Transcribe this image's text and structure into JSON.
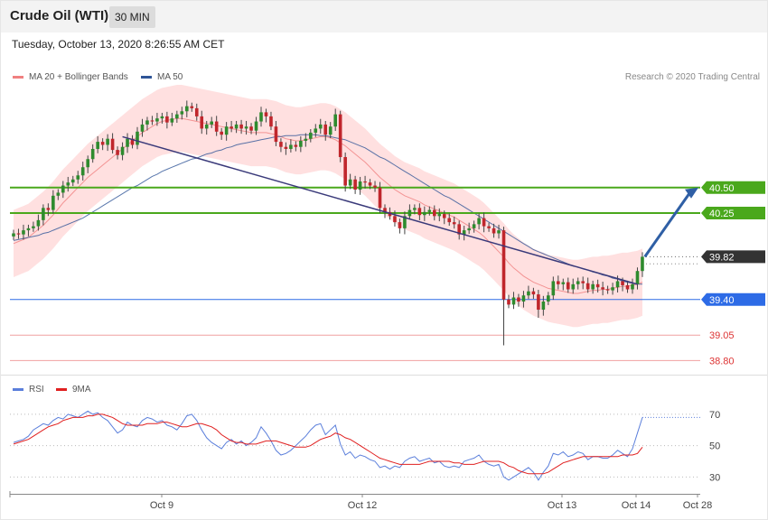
{
  "header": {
    "title": "Crude Oil (WTI)",
    "timeframe": "30 MIN"
  },
  "timestamp": "Tuesday, October 13, 2020 8:26:55 AM CET",
  "legend": [
    {
      "label": "MA 20 + Bollinger Bands",
      "color": "#f08080"
    },
    {
      "label": "MA 50",
      "color": "#2f5597"
    }
  ],
  "copyright": "Research © 2020 Trading Central",
  "rsi_legend": [
    {
      "label": "RSI",
      "color": "#5b7fdb"
    },
    {
      "label": "9MA",
      "color": "#e02020"
    }
  ],
  "colors": {
    "up": "#2e8b2e",
    "down": "#c0262c",
    "band": "#ffd6d6",
    "ma20": "#f08080",
    "ma50": "#2f5597",
    "green_level": "#4aa81c",
    "blue_level": "#2d6be6",
    "red_level": "#f0a0a0",
    "current": "#333333"
  },
  "chart_data": {
    "type": "candlestick",
    "x_ticks": [
      "Oct 9",
      "Oct 12",
      "Oct 13",
      "Oct 14",
      "Oct 28"
    ],
    "ylim": [
      38.75,
      41.35
    ],
    "levels": [
      {
        "label": "40.50",
        "value": 40.5,
        "kind": "resistance"
      },
      {
        "label": "40.25",
        "value": 40.25,
        "kind": "resistance"
      },
      {
        "label": "39.82",
        "value": 39.82,
        "kind": "current"
      },
      {
        "label": "39.40",
        "value": 39.4,
        "kind": "pivot"
      },
      {
        "label": "39.05",
        "value": 39.05,
        "kind": "support"
      },
      {
        "label": "38.80",
        "value": 38.8,
        "kind": "support"
      }
    ],
    "closes": [
      40.05,
      40.04,
      40.08,
      40.1,
      40.12,
      40.18,
      40.3,
      40.28,
      40.42,
      40.45,
      40.52,
      40.55,
      40.58,
      40.62,
      40.7,
      40.78,
      40.88,
      40.95,
      40.92,
      40.98,
      40.87,
      40.82,
      40.9,
      40.98,
      40.92,
      41.05,
      41.12,
      41.16,
      41.15,
      41.18,
      41.2,
      41.14,
      41.18,
      41.22,
      41.25,
      41.3,
      41.28,
      41.2,
      41.08,
      41.12,
      41.15,
      41.05,
      41.02,
      41.1,
      41.08,
      41.12,
      41.08,
      41.1,
      41.06,
      41.15,
      41.24,
      41.2,
      41.1,
      40.95,
      40.9,
      40.88,
      40.92,
      40.9,
      40.96,
      40.98,
      41.04,
      41.08,
      41.12,
      41.02,
      41.1,
      41.22,
      40.8,
      40.52,
      40.58,
      40.48,
      40.56,
      40.55,
      40.52,
      40.5,
      40.3,
      40.26,
      40.22,
      40.16,
      40.1,
      40.22,
      40.28,
      40.3,
      40.23,
      40.26,
      40.28,
      40.22,
      40.24,
      40.2,
      40.16,
      40.14,
      40.04,
      40.08,
      40.1,
      40.14,
      40.2,
      40.12,
      40.1,
      40.05,
      40.08,
      39.4,
      39.35,
      39.42,
      39.38,
      39.44,
      39.48,
      39.45,
      39.3,
      39.38,
      39.44,
      39.58,
      39.55,
      39.57,
      39.5,
      39.55,
      39.58,
      39.56,
      39.5,
      39.55,
      39.52,
      39.5,
      39.49,
      39.52,
      39.58,
      39.54,
      39.5,
      39.55,
      39.68,
      39.82
    ],
    "ma20": [
      39.95,
      39.97,
      39.99,
      40.01,
      40.05,
      40.09,
      40.13,
      40.18,
      40.23,
      40.29,
      40.35,
      40.4,
      40.45,
      40.5,
      40.55,
      40.6,
      40.64,
      40.68,
      40.72,
      40.76,
      40.8,
      40.84,
      40.88,
      40.92,
      40.96,
      41.0,
      41.04,
      41.07,
      41.1,
      41.13,
      41.15,
      41.16,
      41.17,
      41.18,
      41.18,
      41.17,
      41.16,
      41.15,
      41.14,
      41.13,
      41.12,
      41.11,
      41.1,
      41.09,
      41.08,
      41.07,
      41.06,
      41.05,
      41.04,
      41.04,
      41.04,
      41.04,
      41.03,
      41.02,
      41.0,
      40.98,
      40.97,
      40.96,
      40.96,
      40.97,
      40.98,
      40.99,
      41.0,
      41.0,
      40.99,
      40.97,
      40.94,
      40.91,
      40.87,
      40.83,
      40.79,
      40.75,
      40.7,
      40.65,
      40.6,
      40.56,
      40.52,
      40.48,
      40.45,
      40.42,
      40.4,
      40.38,
      40.36,
      40.33,
      40.31,
      40.29,
      40.27,
      40.25,
      40.23,
      40.21,
      40.18,
      40.15,
      40.12,
      40.09,
      40.06,
      40.02,
      39.97,
      39.92,
      39.87,
      39.82,
      39.76,
      39.71,
      39.67,
      39.63,
      39.6,
      39.57,
      39.55,
      39.53,
      39.51,
      39.5,
      39.49,
      39.48,
      39.47,
      39.46,
      39.46,
      39.47,
      39.48,
      39.49,
      39.49,
      39.5,
      39.5,
      39.51,
      39.52,
      39.53,
      39.53,
      39.54,
      39.55,
      39.57
    ],
    "ma50": [
      39.98,
      39.99,
      40.0,
      40.01,
      40.02,
      40.03,
      40.05,
      40.06,
      40.08,
      40.1,
      40.12,
      40.14,
      40.16,
      40.18,
      40.2,
      40.23,
      40.26,
      40.29,
      40.32,
      40.35,
      40.38,
      40.41,
      40.44,
      40.47,
      40.5,
      40.52,
      40.55,
      40.58,
      40.61,
      40.63,
      40.66,
      40.68,
      40.7,
      40.72,
      40.74,
      40.76,
      40.78,
      40.79,
      40.81,
      40.83,
      40.84,
      40.86,
      40.87,
      40.89,
      40.9,
      40.92,
      40.93,
      40.94,
      40.95,
      40.96,
      40.97,
      40.98,
      40.99,
      41.0,
      41.0,
      41.01,
      41.01,
      41.01,
      41.02,
      41.02,
      41.02,
      41.02,
      41.01,
      41.01,
      41.0,
      40.99,
      40.98,
      40.97,
      40.95,
      40.93,
      40.91,
      40.89,
      40.86,
      40.83,
      40.8,
      40.78,
      40.75,
      40.72,
      40.69,
      40.66,
      40.63,
      40.6,
      40.57,
      40.54,
      40.51,
      40.48,
      40.45,
      40.42,
      40.4,
      40.37,
      40.34,
      40.31,
      40.28,
      40.25,
      40.22,
      40.19,
      40.16,
      40.13,
      40.1,
      40.07,
      40.04,
      40.01,
      39.98,
      39.95,
      39.92,
      39.89,
      39.87,
      39.85,
      39.83,
      39.81,
      39.79,
      39.77,
      39.75,
      39.73,
      39.72,
      39.7,
      39.69,
      39.67,
      39.66,
      39.64,
      39.63,
      39.61,
      39.6,
      39.58,
      39.57,
      39.56,
      39.55,
      39.55
    ],
    "trendline": [
      [
        41.0,
        22
      ],
      [
        39.55,
        126
      ]
    ],
    "projection": [
      [
        39.82,
        127.5
      ],
      [
        40.5,
        139
      ]
    ],
    "rsi": {
      "ticks": [
        30,
        50,
        70
      ],
      "ylim": [
        25,
        78
      ],
      "rsi": [
        52,
        53,
        54,
        56,
        60,
        62,
        64,
        63,
        66,
        68,
        67,
        70,
        69,
        68,
        70,
        72,
        70,
        71,
        68,
        66,
        62,
        58,
        60,
        65,
        63,
        62,
        66,
        68,
        67,
        65,
        66,
        63,
        62,
        60,
        64,
        69,
        70,
        66,
        60,
        55,
        52,
        50,
        48,
        52,
        54,
        51,
        53,
        50,
        52,
        55,
        62,
        58,
        53,
        47,
        44,
        45,
        47,
        50,
        53,
        56,
        60,
        63,
        64,
        57,
        60,
        63,
        51,
        44,
        46,
        42,
        44,
        43,
        41,
        40,
        36,
        37,
        35,
        37,
        36,
        40,
        42,
        43,
        40,
        41,
        42,
        39,
        40,
        37,
        36,
        37,
        36,
        40,
        41,
        42,
        44,
        40,
        38,
        37,
        38,
        30,
        28,
        30,
        32,
        34,
        36,
        33,
        28,
        33,
        37,
        45,
        44,
        46,
        43,
        44,
        46,
        45,
        41,
        43,
        43,
        42,
        42,
        44,
        47,
        45,
        43,
        48,
        58,
        68
      ],
      "ma9": [
        51,
        52,
        53,
        54,
        56,
        58,
        60,
        62,
        63,
        64,
        66,
        67,
        68,
        68,
        68,
        69,
        69,
        70,
        70,
        69,
        68,
        66,
        64,
        63,
        63,
        63,
        63,
        64,
        64,
        64,
        65,
        65,
        64,
        63,
        62,
        62,
        63,
        64,
        64,
        63,
        62,
        60,
        57,
        55,
        53,
        52,
        52,
        51,
        51,
        51,
        52,
        53,
        53,
        53,
        52,
        51,
        50,
        49,
        49,
        49,
        50,
        52,
        54,
        55,
        56,
        58,
        57,
        55,
        54,
        52,
        50,
        48,
        46,
        44,
        42,
        41,
        40,
        39,
        38,
        38,
        38,
        38,
        38,
        39,
        40,
        40,
        40,
        40,
        40,
        39,
        39,
        38,
        38,
        38,
        39,
        40,
        40,
        40,
        40,
        39,
        37,
        36,
        34,
        33,
        32,
        32,
        32,
        32,
        33,
        35,
        37,
        39,
        40,
        41,
        42,
        43,
        43,
        43,
        43,
        43,
        43,
        43,
        43,
        44,
        44,
        44,
        45,
        49
      ]
    }
  }
}
